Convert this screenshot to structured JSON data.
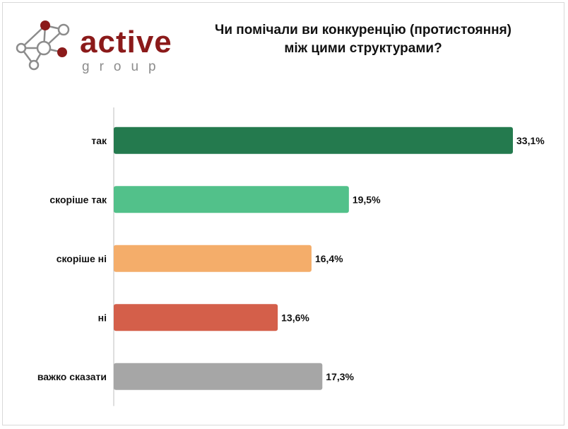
{
  "logo": {
    "wordmark": "active",
    "subtitle": "group",
    "colors": {
      "dark_red": "#8b1a1a",
      "gray": "#8c8c8c",
      "node_fill": "#ffffff"
    }
  },
  "title_lines": [
    "Чи помічали ви конкуренцію (протистояння)",
    "між цими структурами?"
  ],
  "chart_data": {
    "type": "bar",
    "orientation": "horizontal",
    "title": "Чи помічали ви конкуренцію (протистояння) між цими структурами?",
    "categories": [
      "так",
      "скоріше так",
      "скоріше ні",
      "ні",
      "важко сказати"
    ],
    "values": [
      33.1,
      19.5,
      16.4,
      13.6,
      17.3
    ],
    "value_labels": [
      "33,1%",
      "19,5%",
      "16,4%",
      "13,6%",
      "17,3%"
    ],
    "colors": [
      "#247a4e",
      "#52c18a",
      "#f4ad6a",
      "#d45f4a",
      "#a6a6a6"
    ],
    "xlim": [
      0,
      34
    ],
    "grid": false,
    "legend": "none",
    "xlabel": "",
    "ylabel": ""
  }
}
